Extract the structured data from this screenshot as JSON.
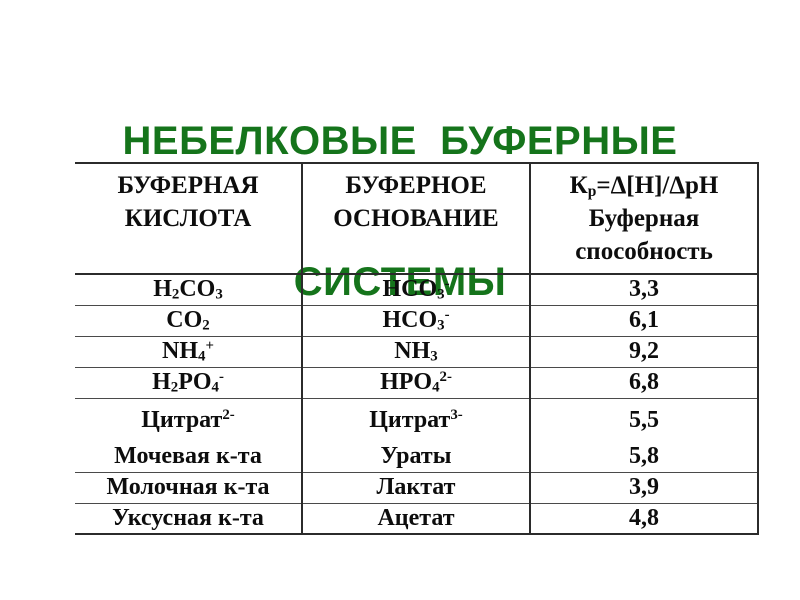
{
  "slide": {
    "title": {
      "line1": "НЕБЕЛКОВЫЕ  БУФЕРНЫЕ",
      "line2": "СИСТЕМЫ",
      "color": "#15741b"
    }
  },
  "table": {
    "border_color": "#2b2b2b",
    "text_color": "#0d0d0d",
    "columns": [
      {
        "id": "acid",
        "header_lines": [
          "БУФЕРНАЯ",
          "КИСЛОТА"
        ]
      },
      {
        "id": "base",
        "header_lines": [
          "БУФЕРНОЕ",
          "ОСНОВАНИЕ"
        ]
      },
      {
        "id": "capacity",
        "header_formula": [
          {
            "t": "К"
          },
          {
            "sub": "р"
          },
          {
            "t": "=Δ[Н]/ΔрН"
          }
        ],
        "header_lines": [
          "Буферная",
          "способность"
        ]
      }
    ],
    "rows": [
      {
        "acid": [
          {
            "t": "H"
          },
          {
            "sub": "2"
          },
          {
            "t": "CO"
          },
          {
            "sub": "3"
          }
        ],
        "base": [
          {
            "t": "HCO"
          },
          {
            "sub": "3"
          },
          {
            "sup": "-"
          }
        ],
        "value": "3,3",
        "divider_below": true
      },
      {
        "acid": [
          {
            "t": "CO"
          },
          {
            "sub": "2"
          }
        ],
        "base": [
          {
            "t": "HCO"
          },
          {
            "sub": "3"
          },
          {
            "sup": "-"
          }
        ],
        "value": "6,1",
        "divider_below": true
      },
      {
        "acid": [
          {
            "t": "NH"
          },
          {
            "sub": "4"
          },
          {
            "sup": "+"
          }
        ],
        "base": [
          {
            "t": "NH"
          },
          {
            "sub": "3"
          }
        ],
        "value": "9,2",
        "divider_below": true
      },
      {
        "acid": [
          {
            "t": "H"
          },
          {
            "sub": "2"
          },
          {
            "t": "PO"
          },
          {
            "sub": "4"
          },
          {
            "sup": "-"
          }
        ],
        "base": [
          {
            "t": "HPO"
          },
          {
            "sub": "4"
          },
          {
            "sup": "2-"
          }
        ],
        "value": "6,8",
        "divider_below": true
      },
      {
        "acid": [
          {
            "t": "Цитрат"
          },
          {
            "sup": "2-"
          }
        ],
        "base": [
          {
            "t": "Цитрат"
          },
          {
            "sup": "3-"
          }
        ],
        "value": "5,5",
        "divider_below": false
      },
      {
        "acid": [
          {
            "t": "Мочевая к-та"
          }
        ],
        "base": [
          {
            "t": "Ураты"
          }
        ],
        "value": "5,8",
        "divider_below": true
      },
      {
        "acid": [
          {
            "t": "Молочная к-та"
          }
        ],
        "base": [
          {
            "t": "Лактат"
          }
        ],
        "value": "3,9",
        "divider_below": true
      },
      {
        "acid": [
          {
            "t": "Уксусная к-та"
          }
        ],
        "base": [
          {
            "t": "Ацетат"
          }
        ],
        "value": "4,8",
        "divider_below": true
      }
    ]
  }
}
